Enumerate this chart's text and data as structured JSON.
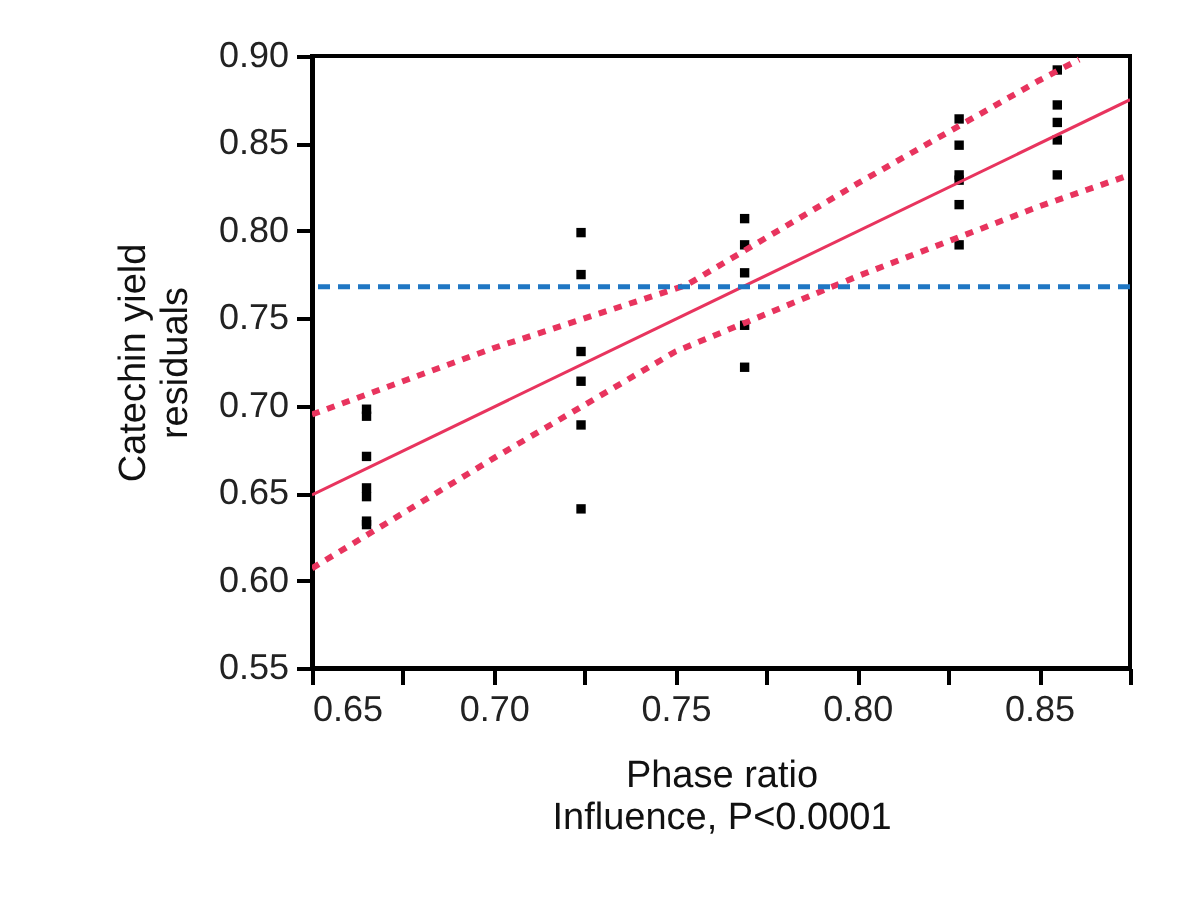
{
  "chart_data": {
    "type": "scatter",
    "xlabel": "Phase ratio",
    "ylabel": "Catechin yield residuals",
    "annotations": [
      "Influence, P<0.0001"
    ],
    "xlim": [
      0.65,
      0.875
    ],
    "ylim": [
      0.55,
      0.9
    ],
    "xticks": [
      0.65,
      {
        "value": 0.675,
        "label": null
      },
      {
        "value": 0.7,
        "label": "0.70"
      },
      {
        "value": 0.725,
        "label": null
      },
      0.75,
      {
        "value": 0.775,
        "label": null
      },
      {
        "value": 0.8,
        "label": "0.80"
      },
      {
        "value": 0.825,
        "label": null
      },
      0.85,
      {
        "value": 0.875,
        "label": null
      }
    ],
    "yticks": [
      0.55,
      {
        "value": 0.6,
        "label": "0.60"
      },
      0.65,
      {
        "value": 0.7,
        "label": "0.70"
      },
      0.75,
      {
        "value": 0.8,
        "label": "0.80"
      },
      0.85,
      {
        "value": 0.9,
        "label": "0.90"
      }
    ],
    "grid": false,
    "ref_lines": [
      {
        "axis": "y",
        "value": 0.768,
        "color": "#1f77c4",
        "line_style": "dashed"
      }
    ],
    "series": [
      {
        "marker": "square",
        "color": "#000000",
        "x": [
          0.665,
          0.665,
          0.665,
          0.665,
          0.665,
          0.665,
          0.665,
          0.724,
          0.724,
          0.724,
          0.724,
          0.724,
          0.724,
          0.769,
          0.769,
          0.769,
          0.769,
          0.769,
          0.828,
          0.828,
          0.828,
          0.828,
          0.828,
          0.828,
          0.855,
          0.855,
          0.855,
          0.855,
          0.855
        ],
        "values": [
          0.698,
          0.694,
          0.671,
          0.653,
          0.648,
          0.634,
          0.632,
          0.799,
          0.775,
          0.731,
          0.714,
          0.689,
          0.641,
          0.807,
          0.792,
          0.776,
          0.746,
          0.722,
          0.864,
          0.849,
          0.832,
          0.829,
          0.815,
          0.792,
          0.892,
          0.872,
          0.862,
          0.852,
          0.832
        ]
      },
      {
        "type": "line",
        "color": "#e8345e",
        "line_style": "solid",
        "x": [
          0.65,
          0.875
        ],
        "values": [
          0.649,
          0.875
        ]
      },
      {
        "type": "line",
        "color": "#e8345e",
        "line_style": "dotted",
        "x": [
          0.65,
          0.7,
          0.753,
          0.8,
          0.85,
          0.861
        ],
        "values": [
          0.695,
          0.733,
          0.769,
          0.827,
          0.886,
          0.898
        ]
      },
      {
        "type": "line",
        "color": "#e8345e",
        "line_style": "dotted",
        "x": [
          0.65,
          0.7,
          0.75,
          0.8,
          0.85,
          0.875
        ],
        "values": [
          0.607,
          0.67,
          0.731,
          0.774,
          0.814,
          0.832
        ]
      }
    ]
  }
}
